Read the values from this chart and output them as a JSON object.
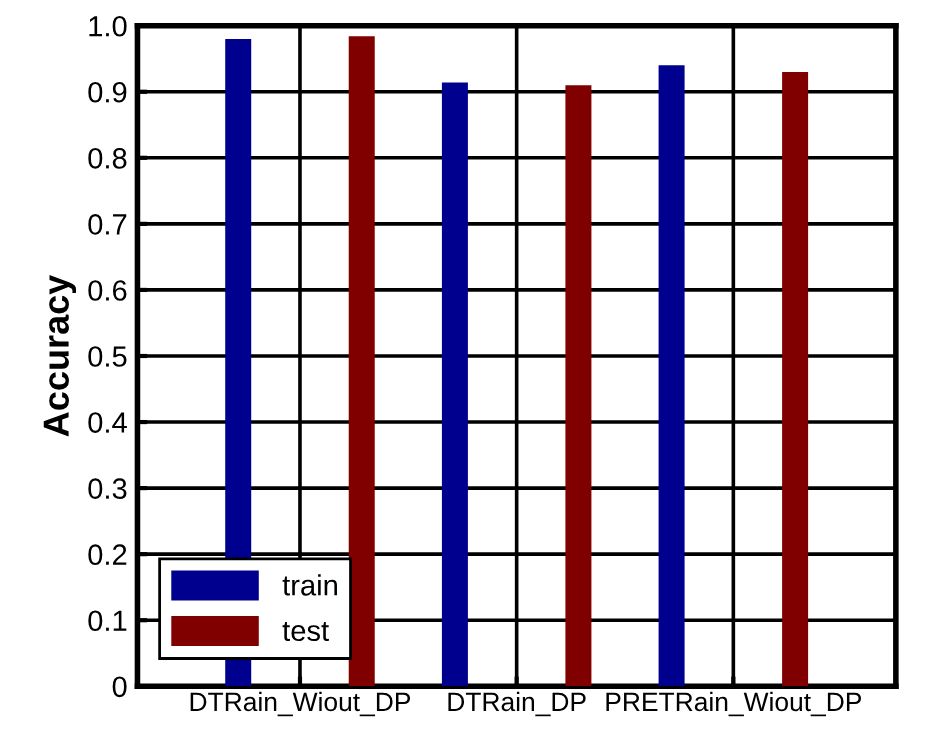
{
  "chart_data": {
    "type": "bar",
    "ylabel": "Accuracy",
    "categories": [
      "DTRain_Wiout_DP",
      "DTRain_DP",
      "PRETRain_Wiout_DP"
    ],
    "series": [
      {
        "name": "train",
        "color": "#00008f",
        "values": [
          0.98,
          0.914,
          0.94
        ]
      },
      {
        "name": "test",
        "color": "#800000",
        "values": [
          0.984,
          0.91,
          0.93
        ]
      }
    ],
    "ylim": [
      0,
      1
    ],
    "yticks": [
      0,
      0.1,
      0.2,
      0.3,
      0.4,
      0.5,
      0.6,
      0.7,
      0.8,
      0.9,
      {
        "value": 1,
        "label": "1.0"
      }
    ],
    "grid": true,
    "legend": "bottom left"
  }
}
